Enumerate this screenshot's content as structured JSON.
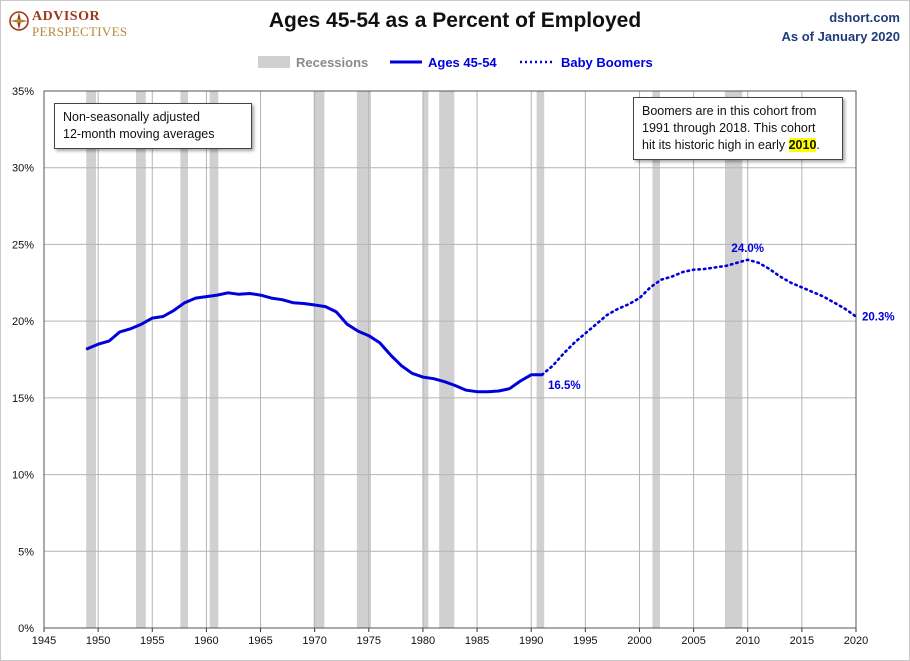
{
  "brand": {
    "line1": "ADVISOR",
    "line2": "PERSPECTIVES"
  },
  "source": {
    "site": "dshort.com",
    "as_of": "As of January 2020"
  },
  "notes": {
    "method_line1": "Non-seasonally adjusted",
    "method_line2": "12-month moving averages",
    "boomers_line1": "Boomers are in this cohort from",
    "boomers_line2": "1991  through 2018.  This cohort",
    "boomers_line3_pre": "hit its historic high in early ",
    "boomers_line3_year": "2010",
    "boomers_line3_post": "."
  },
  "colors": {
    "series": "#0000dd",
    "recession": "#d0d0d0",
    "grid": "#b4b4b4"
  },
  "chart_data": {
    "type": "line",
    "title": "Ages 45-54 as a Percent of Employed",
    "xlabel": "",
    "ylabel": "",
    "xlim": [
      1945,
      2020
    ],
    "ylim": [
      0,
      35
    ],
    "x_ticks": [
      "1945",
      "1950",
      "1955",
      "1960",
      "1965",
      "1970",
      "1975",
      "1980",
      "1985",
      "1990",
      "1995",
      "2000",
      "2005",
      "2010",
      "2015",
      "2020"
    ],
    "y_ticks": [
      "0%",
      "5%",
      "10%",
      "15%",
      "20%",
      "25%",
      "30%",
      "35%"
    ],
    "grid": "vertical and horizontal",
    "legend": {
      "placement": "top-center",
      "entries": [
        "Recessions",
        "Ages 45-54",
        "Baby Boomers"
      ]
    },
    "recessions": [
      [
        1948.9,
        1949.8
      ],
      [
        1953.5,
        1954.4
      ],
      [
        1957.6,
        1958.3
      ],
      [
        1960.3,
        1961.1
      ],
      [
        1969.9,
        1970.9
      ],
      [
        1973.9,
        1975.2
      ],
      [
        1980.0,
        1980.5
      ],
      [
        1981.5,
        1982.9
      ],
      [
        1990.5,
        1991.2
      ],
      [
        2001.2,
        2001.9
      ],
      [
        2007.9,
        2009.5
      ]
    ],
    "series": [
      {
        "name": "Ages 45-54",
        "style": "solid",
        "x": [
          1949,
          1950,
          1951,
          1952,
          1953,
          1954,
          1955,
          1956,
          1957,
          1958,
          1959,
          1960,
          1961,
          1962,
          1963,
          1964,
          1965,
          1966,
          1967,
          1968,
          1969,
          1970,
          1971,
          1972,
          1973,
          1974,
          1975,
          1976,
          1977,
          1978,
          1979,
          1980,
          1981,
          1982,
          1983,
          1984,
          1985,
          1986,
          1987,
          1988,
          1989,
          1990,
          1991
        ],
        "y": [
          18.2,
          18.5,
          18.7,
          19.3,
          19.5,
          19.8,
          20.2,
          20.3,
          20.7,
          21.2,
          21.5,
          21.6,
          21.7,
          21.85,
          21.75,
          21.8,
          21.7,
          21.5,
          21.4,
          21.2,
          21.15,
          21.05,
          20.95,
          20.6,
          19.8,
          19.35,
          19.05,
          18.6,
          17.8,
          17.1,
          16.6,
          16.35,
          16.25,
          16.05,
          15.8,
          15.5,
          15.4,
          15.4,
          15.45,
          15.6,
          16.1,
          16.5,
          16.5
        ]
      },
      {
        "name": "Baby Boomers",
        "style": "dotted",
        "x": [
          1991,
          1992,
          1993,
          1994,
          1995,
          1996,
          1997,
          1998,
          1999,
          2000,
          2001,
          2002,
          2003,
          2004,
          2005,
          2006,
          2007,
          2008,
          2009,
          2010,
          2011,
          2012,
          2013,
          2014,
          2015,
          2016,
          2017,
          2018,
          2019,
          2020
        ],
        "y": [
          16.5,
          17.1,
          17.9,
          18.6,
          19.2,
          19.8,
          20.4,
          20.8,
          21.1,
          21.5,
          22.2,
          22.7,
          22.9,
          23.2,
          23.35,
          23.4,
          23.5,
          23.6,
          23.8,
          24.0,
          23.8,
          23.4,
          22.9,
          22.5,
          22.2,
          21.9,
          21.6,
          21.2,
          20.8,
          20.3
        ]
      }
    ],
    "annotations": [
      {
        "x": 1991,
        "y": 16.5,
        "text": "16.5%"
      },
      {
        "x": 2010,
        "y": 24.0,
        "text": "24.0%"
      },
      {
        "x": 2020,
        "y": 20.3,
        "text": "20.3%"
      }
    ]
  }
}
